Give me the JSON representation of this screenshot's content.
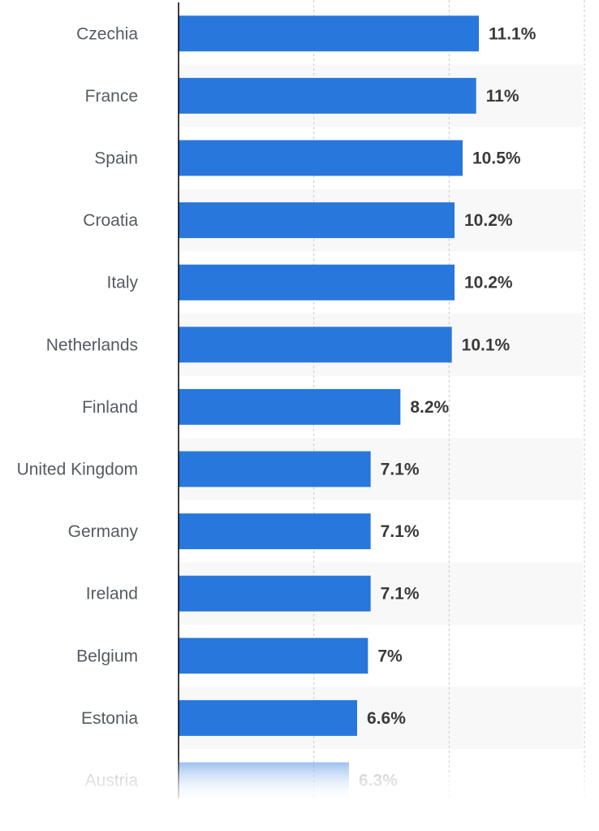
{
  "chart_data": {
    "type": "bar",
    "orientation": "horizontal",
    "title": "",
    "xlabel": "",
    "ylabel": "",
    "xlim": [
      0,
      15
    ],
    "gridlines": [
      5,
      10,
      15
    ],
    "categories": [
      "Czechia",
      "France",
      "Spain",
      "Croatia",
      "Italy",
      "Netherlands",
      "Finland",
      "United Kingdom",
      "Germany",
      "Ireland",
      "Belgium",
      "Estonia",
      "Austria"
    ],
    "values": [
      11.1,
      11,
      10.5,
      10.2,
      10.2,
      10.1,
      8.2,
      7.1,
      7.1,
      7.1,
      7,
      6.6,
      6.3
    ],
    "value_labels": [
      "11.1%",
      "11%",
      "10.5%",
      "10.2%",
      "10.2%",
      "10.1%",
      "8.2%",
      "7.1%",
      "7.1%",
      "7.1%",
      "7%",
      "6.6%",
      "6.3%"
    ],
    "colors": {
      "bar": "#2877dc",
      "bar_faded": "#a9c9f2",
      "row_alt": "#f8f8f8",
      "grid": "#c8c8c8",
      "axis": "#000000"
    }
  }
}
